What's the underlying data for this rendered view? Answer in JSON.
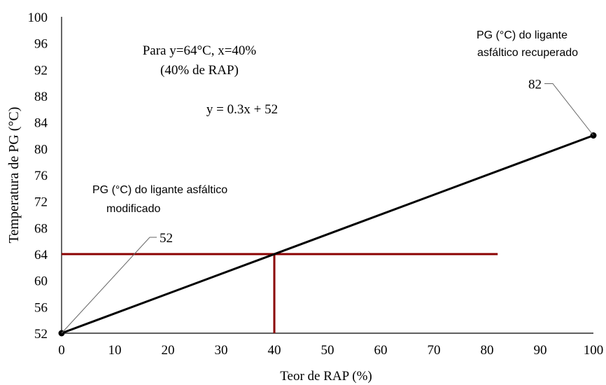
{
  "chart_data": {
    "type": "line",
    "title": "",
    "xlabel": "Teor de RAP (%)",
    "ylabel": "Temperatura de PG (°C)",
    "xlim": [
      0,
      100
    ],
    "ylim": [
      52,
      100
    ],
    "x_ticks": [
      "0",
      "10",
      "20",
      "30",
      "40",
      "50",
      "60",
      "70",
      "80",
      "90",
      "100"
    ],
    "y_ticks": [
      "52",
      "56",
      "60",
      "64",
      "68",
      "72",
      "76",
      "80",
      "84",
      "88",
      "92",
      "96",
      "100"
    ],
    "grid": false,
    "legend": "none",
    "series": [
      {
        "x": [
          0,
          100
        ],
        "y": [
          52,
          82
        ],
        "color": "#000000"
      }
    ],
    "reference_lines": [
      {
        "orientation": "horizontal",
        "y": 64,
        "x_from": 0,
        "x_to": 82,
        "color": "#8b0000"
      },
      {
        "orientation": "vertical",
        "x": 40,
        "y_from": 52,
        "y_to": 64,
        "color": "#8b0000"
      }
    ],
    "point_labels": [
      {
        "x": 0,
        "y": 52,
        "label": "52"
      },
      {
        "x": 100,
        "y": 82,
        "label": "82"
      }
    ],
    "annotations": {
      "condition_line1": "Para y=64°C, x=40%",
      "condition_line2": "(40% de RAP)",
      "equation": "y = 0.3x + 52",
      "modified_line1": "PG (°C) do ligante asfáltico",
      "modified_line2": "modificado",
      "recovered_line1": "PG (°C) do ligante",
      "recovered_line2": "asfáltico recuperado"
    }
  }
}
